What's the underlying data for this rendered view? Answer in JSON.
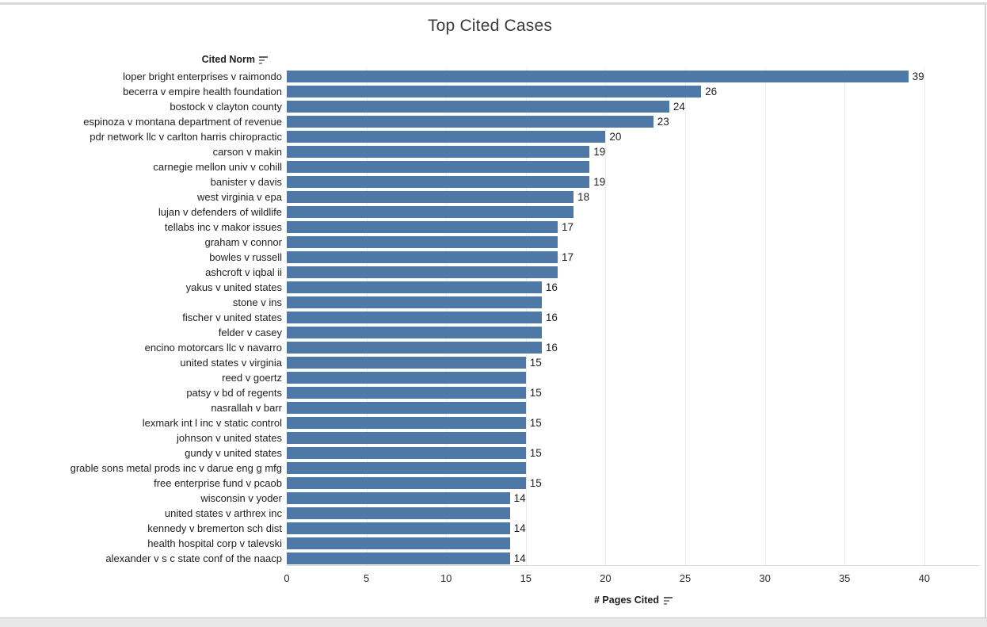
{
  "title": "Top Cited Cases",
  "row_header": {
    "label": "Cited Norm",
    "sort_icon": "sort-descending-icon"
  },
  "x_axis": {
    "label": "# Pages Cited",
    "sort_icon": "sort-descending-icon",
    "ticks": [
      0,
      5,
      10,
      15,
      20,
      25,
      30,
      35,
      40
    ]
  },
  "colors": {
    "bar": "#4e79a7",
    "gridline": "#ececec",
    "axis_line": "#d9d9d9",
    "title_text": "#3b3b3b",
    "label_text": "#1e1e1e"
  },
  "chart_data": {
    "type": "bar",
    "orientation": "horizontal",
    "title": "Top Cited Cases",
    "xlabel": "# Pages Cited",
    "ylabel": "Cited Norm",
    "xlim": [
      0,
      43.5
    ],
    "grid": true,
    "legend": false,
    "categories": [
      "loper bright enterprises v raimondo",
      "becerra v empire health foundation",
      "bostock v clayton county",
      "espinoza v montana department of revenue",
      "pdr network llc v carlton harris chiropractic",
      "carson v makin",
      "carnegie mellon univ v cohill",
      "banister v davis",
      "west virginia v epa",
      "lujan v defenders of wildlife",
      "tellabs inc v makor issues",
      "graham v connor",
      "bowles v russell",
      "ashcroft v iqbal ii",
      "yakus v united states",
      "stone v ins",
      "fischer v united states",
      "felder v casey",
      "encino motorcars llc v navarro",
      "united states v virginia",
      "reed v goertz",
      "patsy v bd of regents",
      "nasrallah v barr",
      "lexmark int l inc v static control",
      "johnson v united states",
      "gundy v united states",
      "grable sons metal prods inc v darue eng g mfg",
      "free enterprise fund v pcaob",
      "wisconsin v yoder",
      "united states v arthrex inc",
      "kennedy v bremerton sch dist",
      "health hospital corp v talevski",
      "alexander v s c state conf of the naacp"
    ],
    "values": [
      39,
      26,
      24,
      23,
      20,
      19,
      19,
      19,
      18,
      18,
      17,
      17,
      17,
      17,
      16,
      16,
      16,
      16,
      16,
      15,
      15,
      15,
      15,
      15,
      15,
      15,
      15,
      15,
      14,
      14,
      14,
      14,
      14
    ],
    "value_label_visible": [
      true,
      true,
      true,
      true,
      true,
      true,
      false,
      true,
      true,
      false,
      true,
      false,
      true,
      false,
      true,
      false,
      true,
      false,
      true,
      true,
      false,
      true,
      false,
      true,
      false,
      true,
      false,
      true,
      true,
      false,
      true,
      false,
      true
    ]
  }
}
